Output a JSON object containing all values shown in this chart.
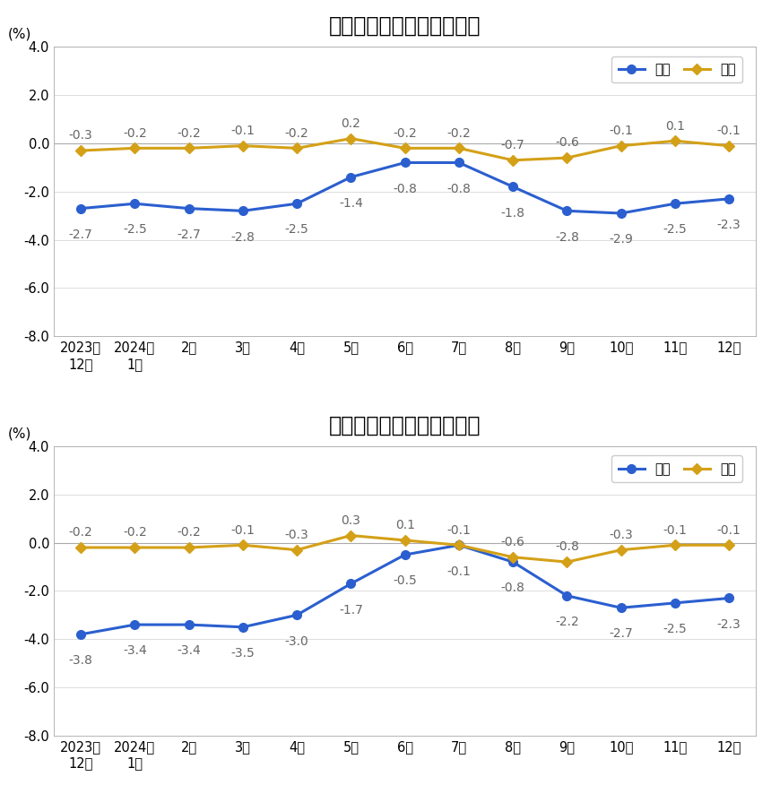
{
  "chart1": {
    "title": "工业生产者出厂价格涨跌幅",
    "yoy": [
      -2.7,
      -2.5,
      -2.7,
      -2.8,
      -2.5,
      -1.4,
      -0.8,
      -0.8,
      -1.8,
      -2.8,
      -2.9,
      -2.5,
      -2.3
    ],
    "mom": [
      -0.3,
      -0.2,
      -0.2,
      -0.1,
      -0.2,
      0.2,
      -0.2,
      -0.2,
      -0.7,
      -0.6,
      -0.1,
      0.1,
      -0.1
    ]
  },
  "chart2": {
    "title": "工业生产者购进价格涨跌幅",
    "yoy": [
      -3.8,
      -3.4,
      -3.4,
      -3.5,
      -3.0,
      -1.7,
      -0.5,
      -0.1,
      -0.8,
      -2.2,
      -2.7,
      -2.5,
      -2.3
    ],
    "mom": [
      -0.2,
      -0.2,
      -0.2,
      -0.1,
      -0.3,
      0.3,
      0.1,
      -0.1,
      -0.6,
      -0.8,
      -0.3,
      -0.1,
      -0.1
    ]
  },
  "x_labels": [
    "2023年\n12月",
    "2024年\n1月",
    "2月",
    "3月",
    "4月",
    "5月",
    "6月",
    "7月",
    "8月",
    "9月",
    "10月",
    "11月",
    "12月"
  ],
  "ylim": [
    -8.0,
    4.0
  ],
  "yticks": [
    -8.0,
    -6.0,
    -4.0,
    -2.0,
    0.0,
    2.0,
    4.0
  ],
  "ylabel": "(%)",
  "yoy_color": "#2B5FCF",
  "mom_color": "#D4A017",
  "line_width": 2.2,
  "marker_size": 7,
  "legend_yoy": "同比",
  "legend_mom": "环比",
  "bg_color": "#ffffff",
  "plot_bg_color": "#ffffff",
  "annotation_color": "#666666",
  "annotation_fontsize": 10,
  "title_fontsize": 17,
  "label_fontsize": 11,
  "tick_fontsize": 10.5
}
